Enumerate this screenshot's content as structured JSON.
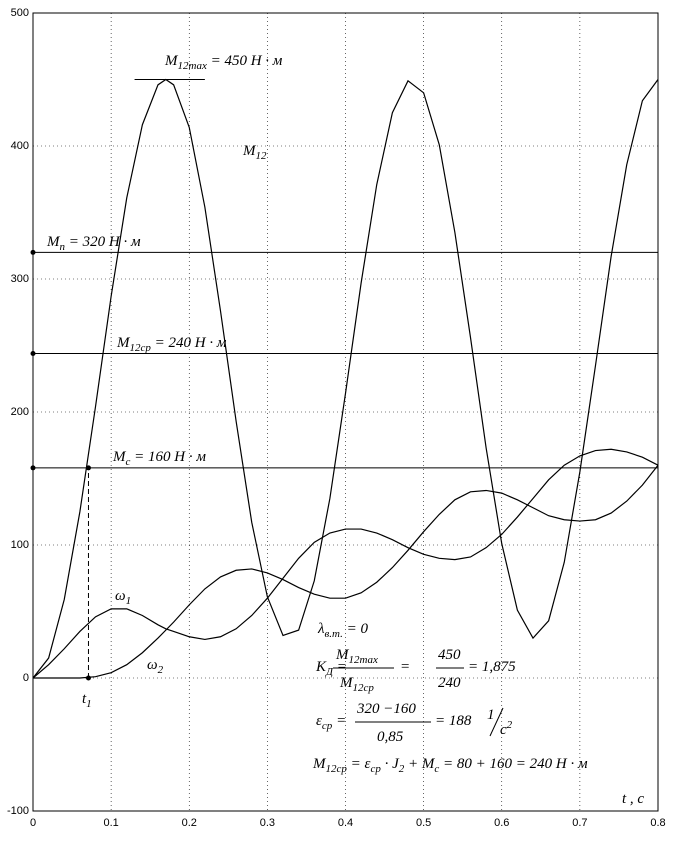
{
  "chart_data": {
    "type": "line",
    "x": [
      0,
      0.02,
      0.04,
      0.06,
      0.08,
      0.1,
      0.12,
      0.14,
      0.16,
      0.17,
      0.18,
      0.2,
      0.22,
      0.24,
      0.26,
      0.28,
      0.3,
      0.32,
      0.34,
      0.36,
      0.38,
      0.4,
      0.42,
      0.44,
      0.46,
      0.48,
      0.5,
      0.52,
      0.54,
      0.56,
      0.58,
      0.6,
      0.62,
      0.64,
      0.66,
      0.68,
      0.7,
      0.72,
      0.74,
      0.76,
      0.78,
      0.8
    ],
    "series": [
      {
        "color": "#000000",
        "values": [
          0,
          15,
          59,
          125,
          204,
          287,
          361,
          416,
          446,
          450,
          446,
          414,
          354,
          276,
          193,
          117,
          61,
          32,
          36,
          73,
          135,
          214,
          297,
          371,
          425,
          449,
          440,
          401,
          335,
          256,
          173,
          101,
          51,
          30,
          43,
          87,
          155,
          235,
          317,
          386,
          434,
          450
        ]
      },
      {
        "color": "#000000",
        "values": [
          0,
          10,
          22,
          35,
          46,
          52,
          52,
          47,
          40,
          37,
          35,
          31,
          29,
          31,
          37,
          47,
          60,
          75,
          90,
          102,
          109,
          112,
          112,
          109,
          104,
          98,
          93,
          90,
          89,
          91,
          98,
          108,
          121,
          135,
          149,
          160,
          167,
          171,
          172,
          170,
          166,
          160
        ]
      },
      {
        "color": "#000000",
        "values": [
          0,
          0,
          0,
          0,
          1,
          4,
          10,
          19,
          30,
          36,
          42,
          55,
          67,
          76,
          81,
          82,
          79,
          74,
          68,
          63,
          60,
          60,
          64,
          72,
          83,
          96,
          110,
          123,
          134,
          140,
          141,
          139,
          134,
          128,
          122,
          119,
          118,
          119,
          124,
          133,
          145,
          160
        ]
      }
    ],
    "hlines": [
      320,
      244,
      158
    ],
    "marker_x": 0.071,
    "max_marker": {
      "x": [
        0.13,
        0.22
      ],
      "value": 450
    },
    "xlim": [
      0,
      0.8
    ],
    "ylim": [
      -100,
      500
    ],
    "xticks": [
      0,
      0.1,
      0.2,
      0.3,
      0.4,
      0.5,
      0.6,
      0.7,
      0.8
    ],
    "yticks": [
      -100,
      0,
      100,
      200,
      300,
      400,
      500
    ],
    "grid": true,
    "annotations": [
      [
        "M",
        {
          "sub": "12max"
        },
        " = 450 Н · м"
      ],
      [
        "M",
        {
          "sub": "12"
        }
      ],
      [
        "M",
        {
          "sub": "п"
        },
        " = 320 Н · м"
      ],
      [
        "M",
        {
          "sub": "12ср"
        },
        " = 240 Н · м"
      ],
      [
        "M",
        {
          "sub": "c"
        },
        " = 160 Н · м"
      ],
      [
        "ω",
        {
          "sub": "1"
        }
      ],
      [
        "ω",
        {
          "sub": "2"
        }
      ],
      [
        "t",
        {
          "sub": "1"
        }
      ],
      [
        "λ",
        {
          "sub": "в.т."
        },
        " = 0"
      ],
      [
        "K",
        {
          "sub": "Д"
        },
        " ="
      ],
      [
        "M",
        {
          "sub": "12max"
        }
      ],
      [
        "M",
        {
          "sub": "12ср"
        }
      ],
      [
        "="
      ],
      [
        "450"
      ],
      [
        "240"
      ],
      [
        "= 1,875"
      ],
      [
        "ε",
        {
          "sub": "ср"
        },
        " ="
      ],
      [
        "320 −160"
      ],
      [
        "0,85"
      ],
      [
        "= 188"
      ],
      [
        "1"
      ],
      [
        "c",
        {
          "sup": "2"
        }
      ],
      [
        "M",
        {
          "sub": "12ср"
        },
        " = ε",
        {
          "sub": "ср"
        },
        " · J",
        {
          "sub": "2"
        },
        " + M",
        {
          "sub": "c"
        },
        " = 80 + 160 = 240 Н · м"
      ],
      [
        "t , c"
      ]
    ]
  }
}
